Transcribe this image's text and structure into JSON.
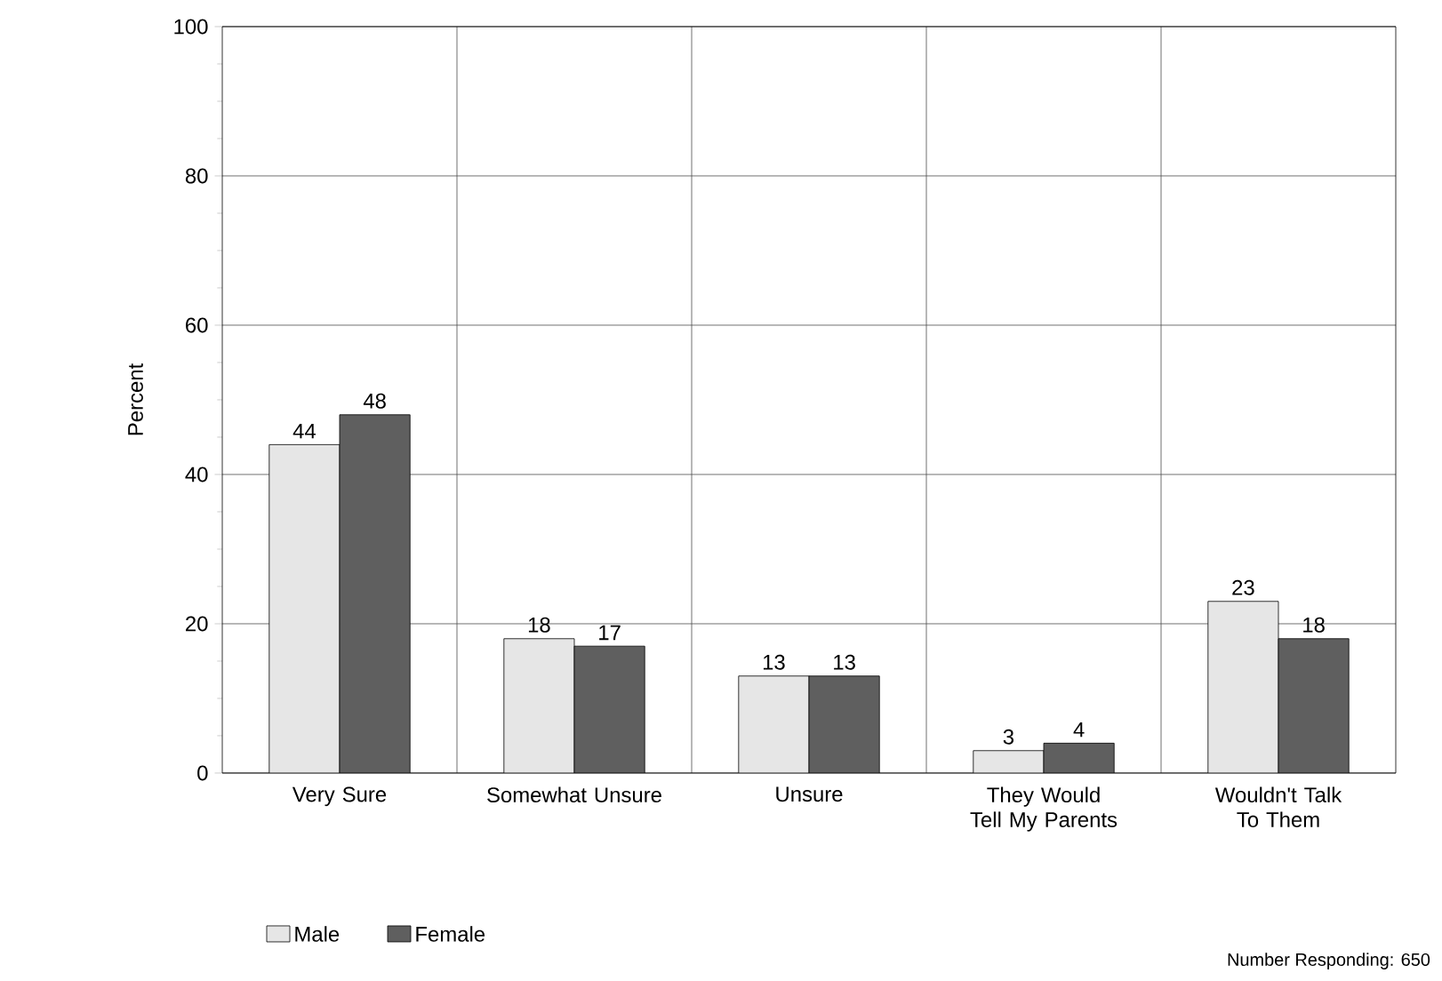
{
  "chart_data": {
    "type": "bar",
    "ylabel": "Percent",
    "categories": [
      "Very Sure",
      "Somewhat Unsure",
      "Unsure",
      "They Would Tell My Parents",
      "Wouldn't Talk To Them"
    ],
    "series": [
      {
        "name": "Male",
        "color": "#e6e6e6",
        "values": [
          44,
          18,
          13,
          3,
          23
        ]
      },
      {
        "name": "Female",
        "color": "#5f5f5f",
        "values": [
          48,
          17,
          13,
          4,
          18
        ]
      }
    ],
    "ylim": [
      0,
      100
    ],
    "yticks": [
      0,
      20,
      40,
      60,
      80,
      100
    ],
    "grid": true,
    "legend": "bottom left",
    "data_labels": true,
    "annotations": [
      "Number Responding:  650"
    ]
  }
}
